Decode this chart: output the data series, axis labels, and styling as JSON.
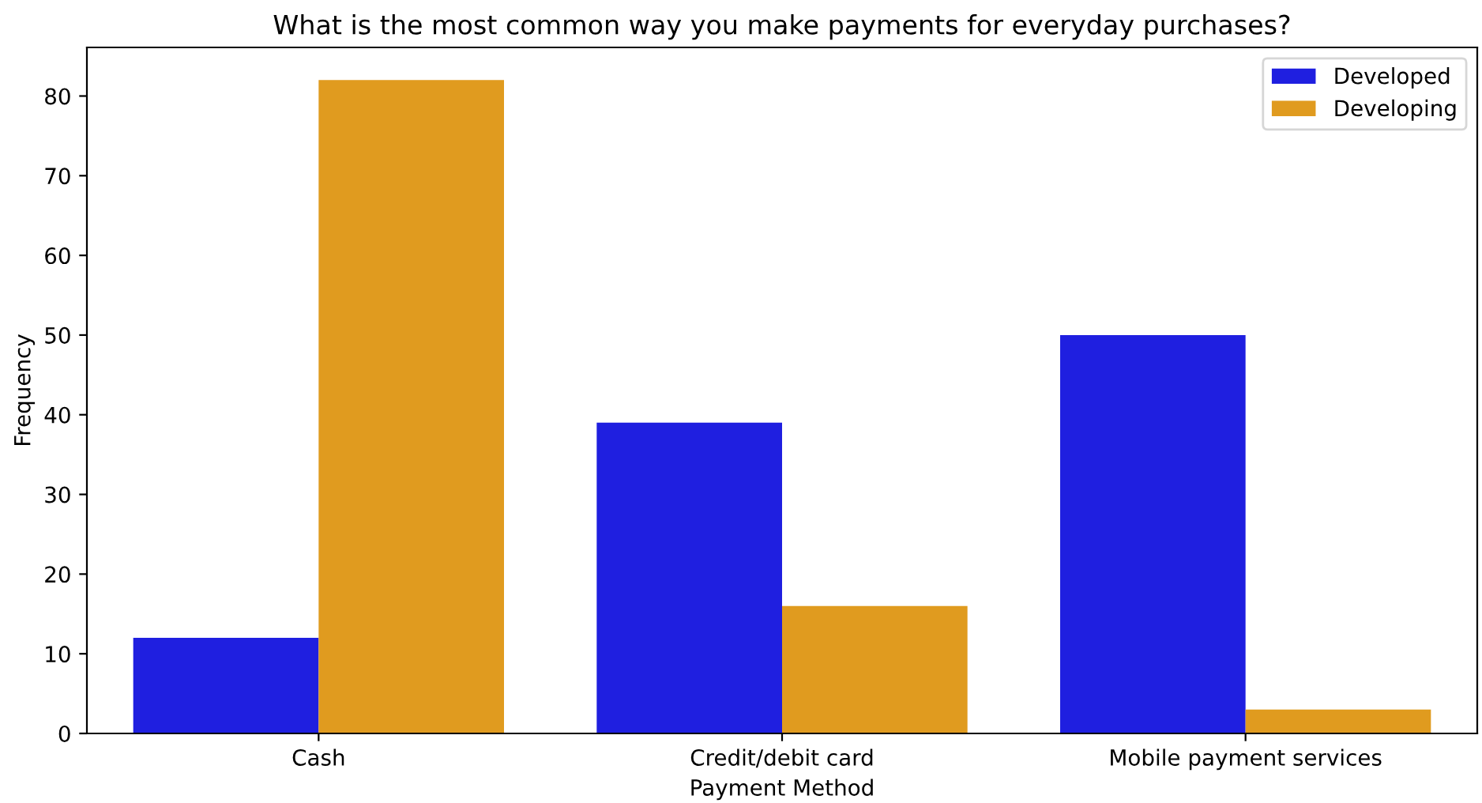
{
  "chart_data": {
    "type": "bar",
    "title": "What is the most common way you make payments for everyday purchases?",
    "xlabel": "Payment Method",
    "ylabel": "Frequency",
    "categories": [
      "Cash",
      "Credit/debit card",
      "Mobile payment services"
    ],
    "series": [
      {
        "name": "Developed",
        "color": "#1f1fe0",
        "values": [
          12,
          39,
          50
        ]
      },
      {
        "name": "Developing",
        "color": "#e09b1f",
        "values": [
          82,
          16,
          3
        ]
      }
    ],
    "ylim": [
      0,
      86.1
    ],
    "yticks": [
      0,
      10,
      20,
      30,
      40,
      50,
      60,
      70,
      80
    ],
    "grid": false,
    "legend": "top right"
  }
}
